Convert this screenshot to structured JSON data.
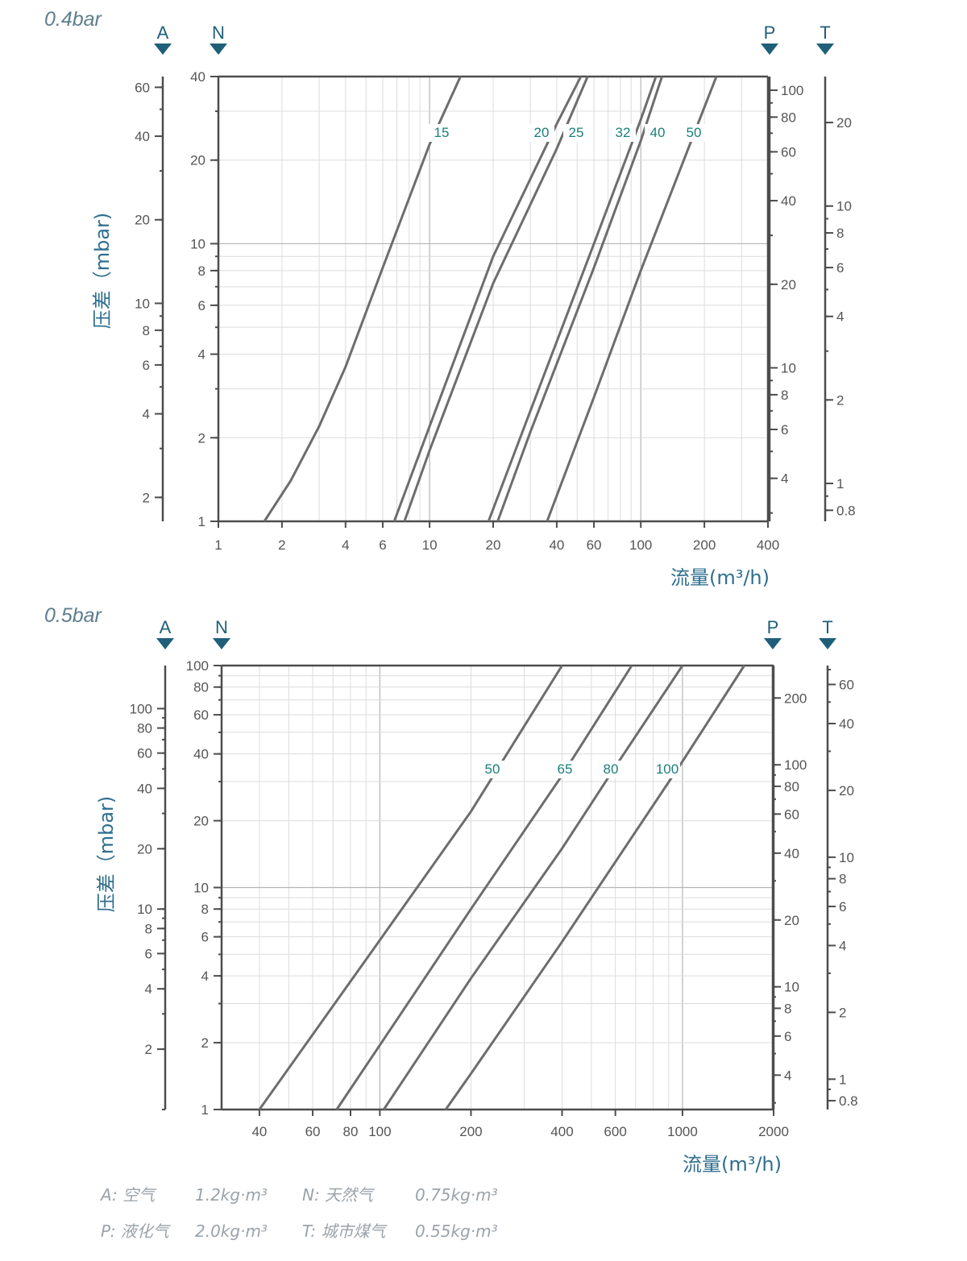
{
  "chart_data": [
    {
      "type": "line",
      "title": "0.4bar",
      "ylabel": "压差（mbar)",
      "xlabel": "流量(m³/h)",
      "x_scale": "log",
      "y_scale": "log",
      "xlim": [
        1,
        400
      ],
      "ylim": [
        1,
        40
      ],
      "grid": true,
      "x_ticks": [
        1,
        2,
        4,
        6,
        10,
        20,
        40,
        60,
        100,
        200,
        400
      ],
      "y_ticks": [
        1,
        2,
        4,
        6,
        8,
        10,
        20,
        40
      ],
      "axis_markers": [
        {
          "letter": "A",
          "ticks": [
            2,
            4,
            6,
            8,
            10,
            20,
            40,
            60
          ],
          "range": [
            1.64,
            65.6
          ]
        },
        {
          "letter": "N",
          "ticks": [
            1,
            2,
            4,
            6,
            8,
            10,
            20,
            40
          ],
          "range": [
            1,
            40
          ]
        },
        {
          "letter": "P",
          "ticks": [
            4,
            6,
            8,
            10,
            20,
            40,
            60,
            80,
            100
          ],
          "range": [
            2.8,
            112
          ]
        },
        {
          "letter": "T",
          "ticks": [
            0.8,
            1,
            2,
            4,
            6,
            8,
            10,
            20
          ],
          "range": [
            0.73,
            29.3
          ]
        }
      ],
      "series": [
        {
          "name": "15",
          "x": [
            1.65,
            2.2,
            3,
            4,
            6,
            10,
            14
          ],
          "y": [
            1,
            1.4,
            2.2,
            3.6,
            8.2,
            22.8,
            40
          ]
        },
        {
          "name": "20",
          "x": [
            6.8,
            10,
            20,
            40,
            52
          ],
          "y": [
            1,
            2.2,
            9,
            27,
            40
          ]
        },
        {
          "name": "25",
          "x": [
            7.6,
            10,
            20,
            40,
            56
          ],
          "y": [
            1,
            1.8,
            7.2,
            22,
            40
          ]
        },
        {
          "name": "32",
          "x": [
            19,
            30,
            60,
            100,
            118
          ],
          "y": [
            1,
            2.5,
            10,
            28,
            40
          ]
        },
        {
          "name": "40",
          "x": [
            21,
            30,
            60,
            100,
            126
          ],
          "y": [
            1,
            2.1,
            8.2,
            23.5,
            40
          ]
        },
        {
          "name": "50",
          "x": [
            36,
            60,
            100,
            200,
            228
          ],
          "y": [
            1,
            2.8,
            8,
            31,
            40
          ]
        }
      ]
    },
    {
      "type": "line",
      "title": "0.5bar",
      "ylabel": "压差（mbar)",
      "xlabel": "流量(m³/h)",
      "x_scale": "log",
      "y_scale": "log",
      "xlim": [
        30,
        2000
      ],
      "ylim": [
        1,
        100
      ],
      "grid": true,
      "x_ticks": [
        40,
        60,
        80,
        100,
        200,
        400,
        600,
        1000,
        2000
      ],
      "y_ticks": [
        1,
        2,
        4,
        6,
        8,
        10,
        20,
        40,
        60,
        80,
        100
      ],
      "axis_markers": [
        {
          "letter": "A",
          "ticks": [
            2,
            4,
            6,
            8,
            10,
            20,
            40,
            60,
            80,
            100
          ],
          "range": [
            1,
            164
          ]
        },
        {
          "letter": "N",
          "ticks": [
            1,
            2,
            4,
            6,
            8,
            10,
            20,
            40,
            60,
            80,
            100
          ],
          "range": [
            1,
            100
          ]
        },
        {
          "letter": "P",
          "ticks": [
            4,
            6,
            8,
            10,
            20,
            40,
            60,
            80,
            100,
            200
          ],
          "range": [
            2.8,
            280
          ]
        },
        {
          "letter": "T",
          "ticks": [
            0.8,
            1,
            2,
            4,
            6,
            8,
            10,
            20,
            40,
            60
          ],
          "range": [
            0.73,
            73
          ]
        }
      ],
      "series": [
        {
          "name": "50",
          "x": [
            40,
            100,
            200,
            400
          ],
          "y": [
            1,
            5.8,
            22,
            100
          ]
        },
        {
          "name": "65",
          "x": [
            72,
            100,
            200,
            400,
            680
          ],
          "y": [
            1,
            1.95,
            8,
            32,
            100
          ]
        },
        {
          "name": "80",
          "x": [
            103,
            200,
            400,
            600,
            1000
          ],
          "y": [
            1,
            3.9,
            15,
            35,
            100
          ]
        },
        {
          "name": "100",
          "x": [
            165,
            200,
            400,
            1000,
            1600
          ],
          "y": [
            1,
            1.45,
            5.7,
            37,
            100
          ]
        }
      ]
    }
  ],
  "legend_rows": [
    {
      "gas1": "A: 空气",
      "density1": "1.2kg·m³",
      "gas2": "N: 天然气",
      "density2": "0.75kg·m³"
    },
    {
      "gas1": "P: 液化气",
      "density1": "2.0kg·m³",
      "gas2": "T: 城市煤气",
      "density2": "0.55kg·m³"
    }
  ]
}
